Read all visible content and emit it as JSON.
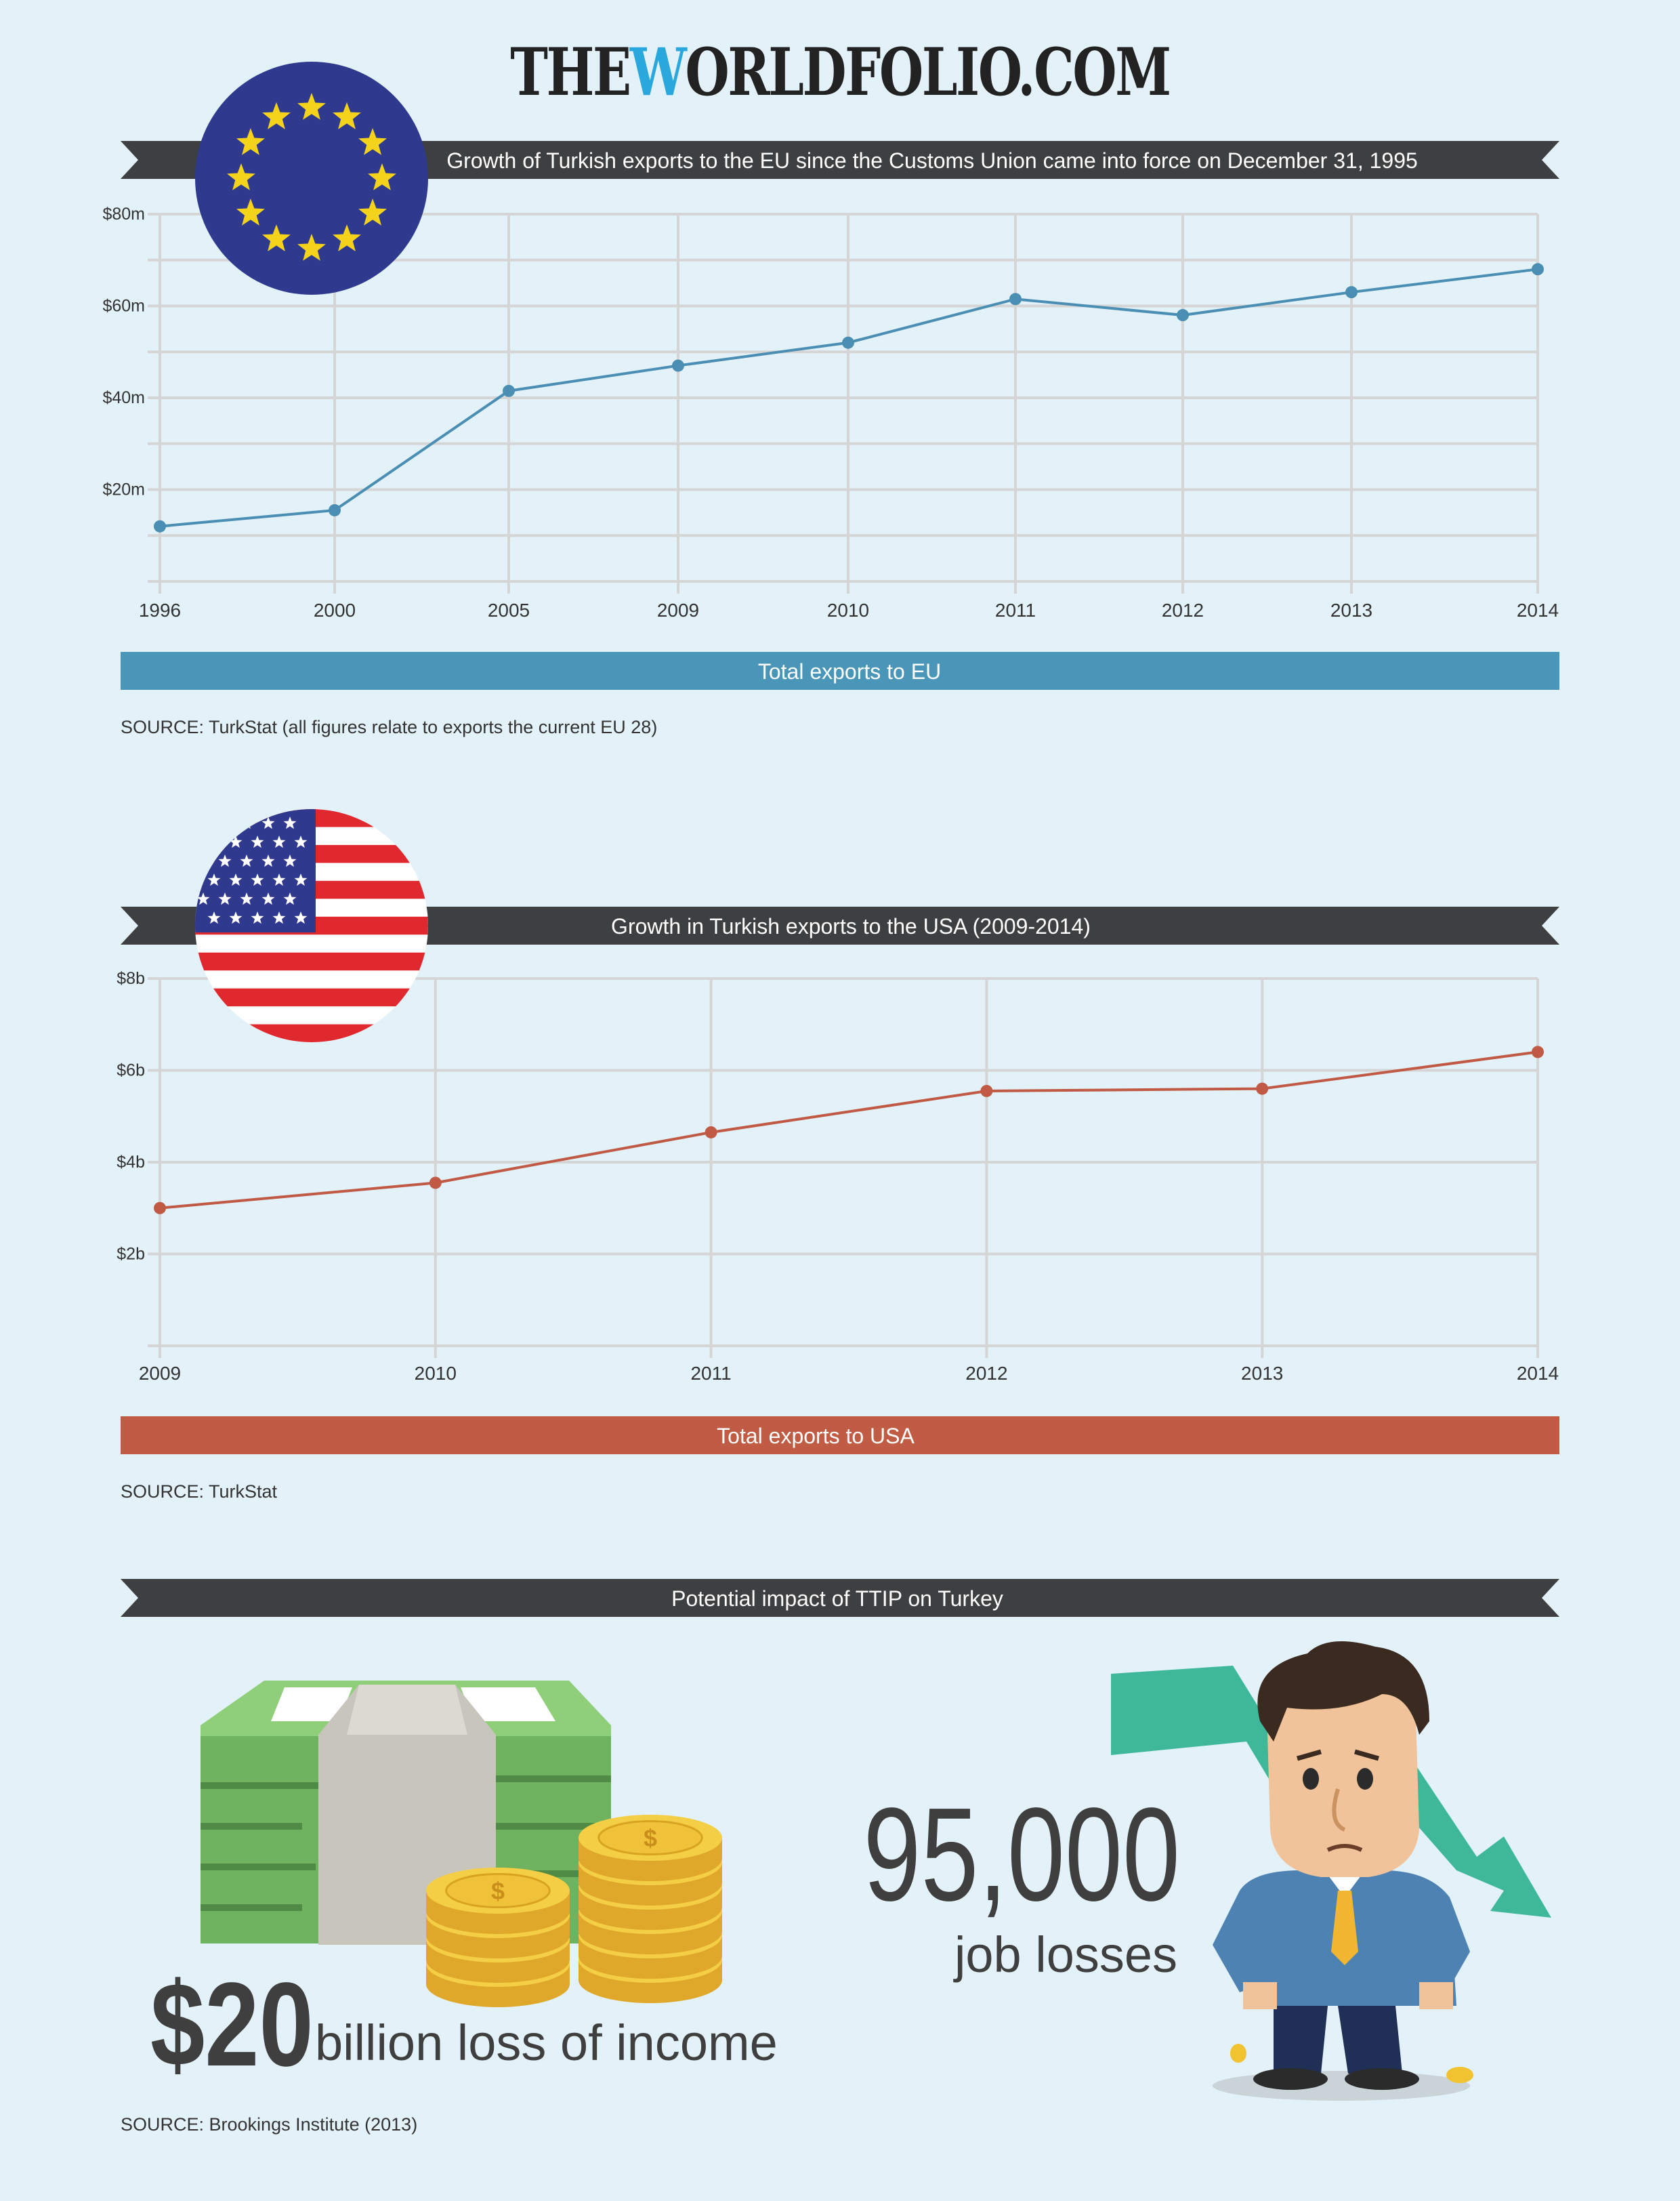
{
  "site": {
    "title_prefix": "THE",
    "title_accent": "W",
    "title_suffix": "ORLDFOLIO.COM"
  },
  "colors": {
    "background": "#e3f1f9",
    "banner": "#3d3f41",
    "eu_line": "#4a8fb3",
    "eu_bar": "#4a96b9",
    "usa_line": "#c05a44",
    "usa_bar": "#c15c44",
    "grid": "#d5d5d5"
  },
  "chart_data": [
    {
      "type": "line",
      "title": "Growth of Turkish exports to the EU since the Customs Union came  into force on December 31, 1995",
      "categories": [
        "1996",
        "2000",
        "2005",
        "2009",
        "2010",
        "2011",
        "2012",
        "2013",
        "2014"
      ],
      "values": [
        12,
        15.5,
        41.5,
        47,
        52,
        61.5,
        58,
        63,
        68
      ],
      "y_ticks": [
        20,
        40,
        60,
        80
      ],
      "y_tick_labels": [
        "$20m",
        "$40m",
        "$60m",
        "$80m"
      ],
      "ylim": [
        0,
        80
      ],
      "grid": true,
      "legend_bar": "Total exports to EU",
      "source": "SOURCE: TurkStat (all figures relate to exports the current EU 28)"
    },
    {
      "type": "line",
      "title": "Growth in Turkish exports to the USA (2009-2014)",
      "categories": [
        "2009",
        "2010",
        "2011",
        "2012",
        "2013",
        "2014"
      ],
      "values": [
        3.0,
        3.55,
        4.65,
        5.55,
        5.6,
        6.4
      ],
      "y_ticks": [
        2,
        4,
        6,
        8
      ],
      "y_tick_labels": [
        "$2b",
        "$4b",
        "$6b",
        "$8b"
      ],
      "ylim": [
        0,
        8
      ],
      "grid": true,
      "legend_bar": "Total exports to USA",
      "source": "SOURCE: TurkStat"
    }
  ],
  "impact": {
    "title": "Potential impact of TTIP on Turkey",
    "income_value": "$20",
    "income_label": "billion loss of income",
    "jobs_value": "95,000",
    "jobs_label": "job losses",
    "coin_symbol": "$",
    "source": "SOURCE: Brookings Institute (2013)"
  },
  "icons": [
    "eu-flag-icon",
    "usa-flag-icon",
    "money-stack-icon",
    "coins-icon",
    "worried-man-icon",
    "down-arrow-icon"
  ]
}
